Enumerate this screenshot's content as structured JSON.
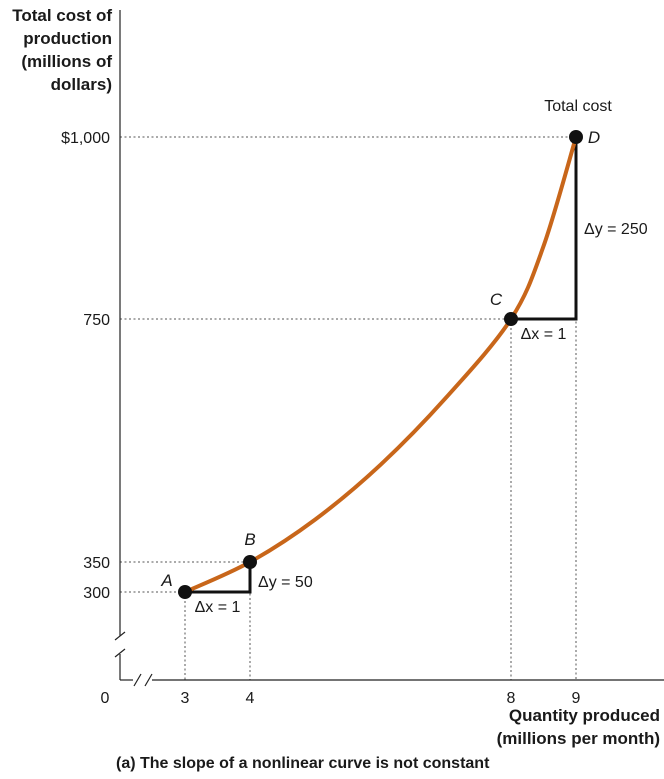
{
  "chart_data": {
    "type": "line",
    "y_axis_title_lines": [
      "Total cost of",
      "production",
      "(millions of",
      "dollars)"
    ],
    "x_axis_title_lines": [
      "Quantity produced",
      "(millions per month)"
    ],
    "caption": "(a) The slope of a nonlinear curve is not constant",
    "x_ticks": [
      {
        "value": 3,
        "label": "3"
      },
      {
        "value": 4,
        "label": "4"
      },
      {
        "value": 8,
        "label": "8"
      },
      {
        "value": 9,
        "label": "9"
      }
    ],
    "y_ticks": [
      {
        "value": 300,
        "label": "300"
      },
      {
        "value": 350,
        "label": "350"
      },
      {
        "value": 750,
        "label": "750"
      },
      {
        "value": 1000,
        "label": "$1,000"
      }
    ],
    "origin_label": "0",
    "axis_breaks": true,
    "xlim": [
      0,
      10
    ],
    "ylim": [
      0,
      1150
    ],
    "series": [
      {
        "name": "Total cost",
        "color": "#c8661a",
        "x": [
          3,
          4,
          5,
          6,
          7,
          8,
          8.5,
          9
        ],
        "y": [
          300,
          350,
          420,
          510,
          620,
          750,
          850,
          1000
        ]
      }
    ],
    "points": [
      {
        "label": "A",
        "x": 3,
        "y": 300
      },
      {
        "label": "B",
        "x": 4,
        "y": 350
      },
      {
        "label": "C",
        "x": 8,
        "y": 750
      },
      {
        "label": "D",
        "x": 9,
        "y": 1000
      }
    ],
    "slope_triangles": [
      {
        "x0": 3,
        "x1": 4,
        "y0": 300,
        "y1": 350,
        "dx_label": "Δx = 1",
        "dy_label": "Δy = 50"
      },
      {
        "x0": 8,
        "x1": 9,
        "y0": 750,
        "y1": 1000,
        "dx_label": "Δx = 1",
        "dy_label": "Δy = 250"
      }
    ],
    "grid": false,
    "reference_lines": "dotted"
  }
}
